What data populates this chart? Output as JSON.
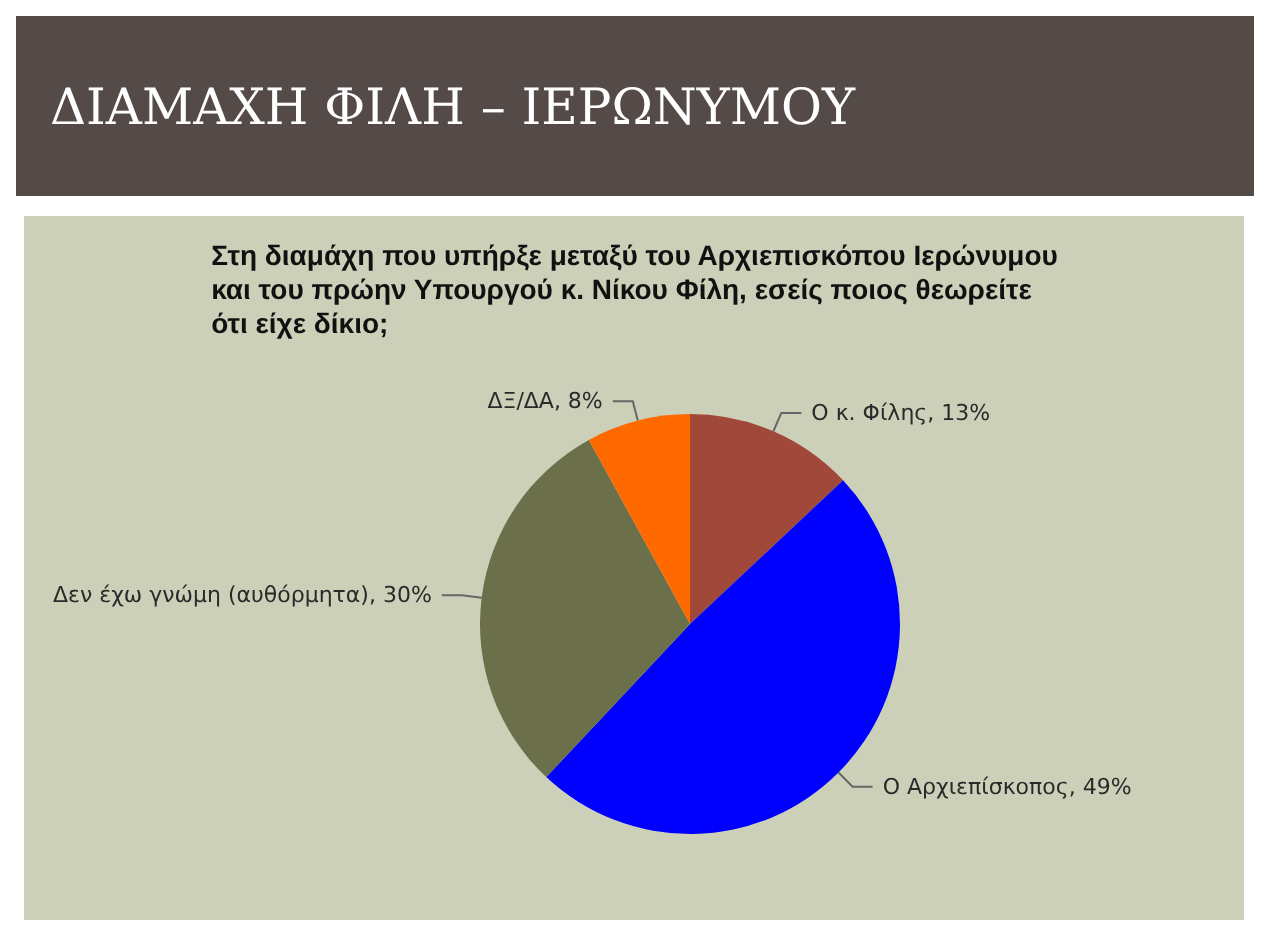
{
  "chart_data": {
    "type": "pie",
    "title": "ΔΙΑΜΑΧΗ ΦΙΛΗ – ΙΕΡΩΝΥΜΟΥ",
    "subtitle": "Στη διαμάχη που υπήρξε μεταξύ του Αρχιεπισκόπου Ιερώνυμου\nκαι του πρώην Υπουργού κ. Νίκου Φίλη, εσείς ποιος θεωρείτε\nότι είχε δίκιο;",
    "categories": [
      "Ο κ. Φίλης",
      "Ο Αρχιεπίσκοπος",
      "Δεν έχω γνώμη (αυθόρμητα)",
      "ΔΞ/ΔΑ"
    ],
    "values": [
      13,
      49,
      30,
      8
    ],
    "value_labels": [
      "13%",
      "49%",
      "30%",
      "8%"
    ],
    "colors": [
      "#a0493a",
      "#0000ff",
      "#6b6f4a",
      "#ff6a00"
    ],
    "legend": false
  }
}
